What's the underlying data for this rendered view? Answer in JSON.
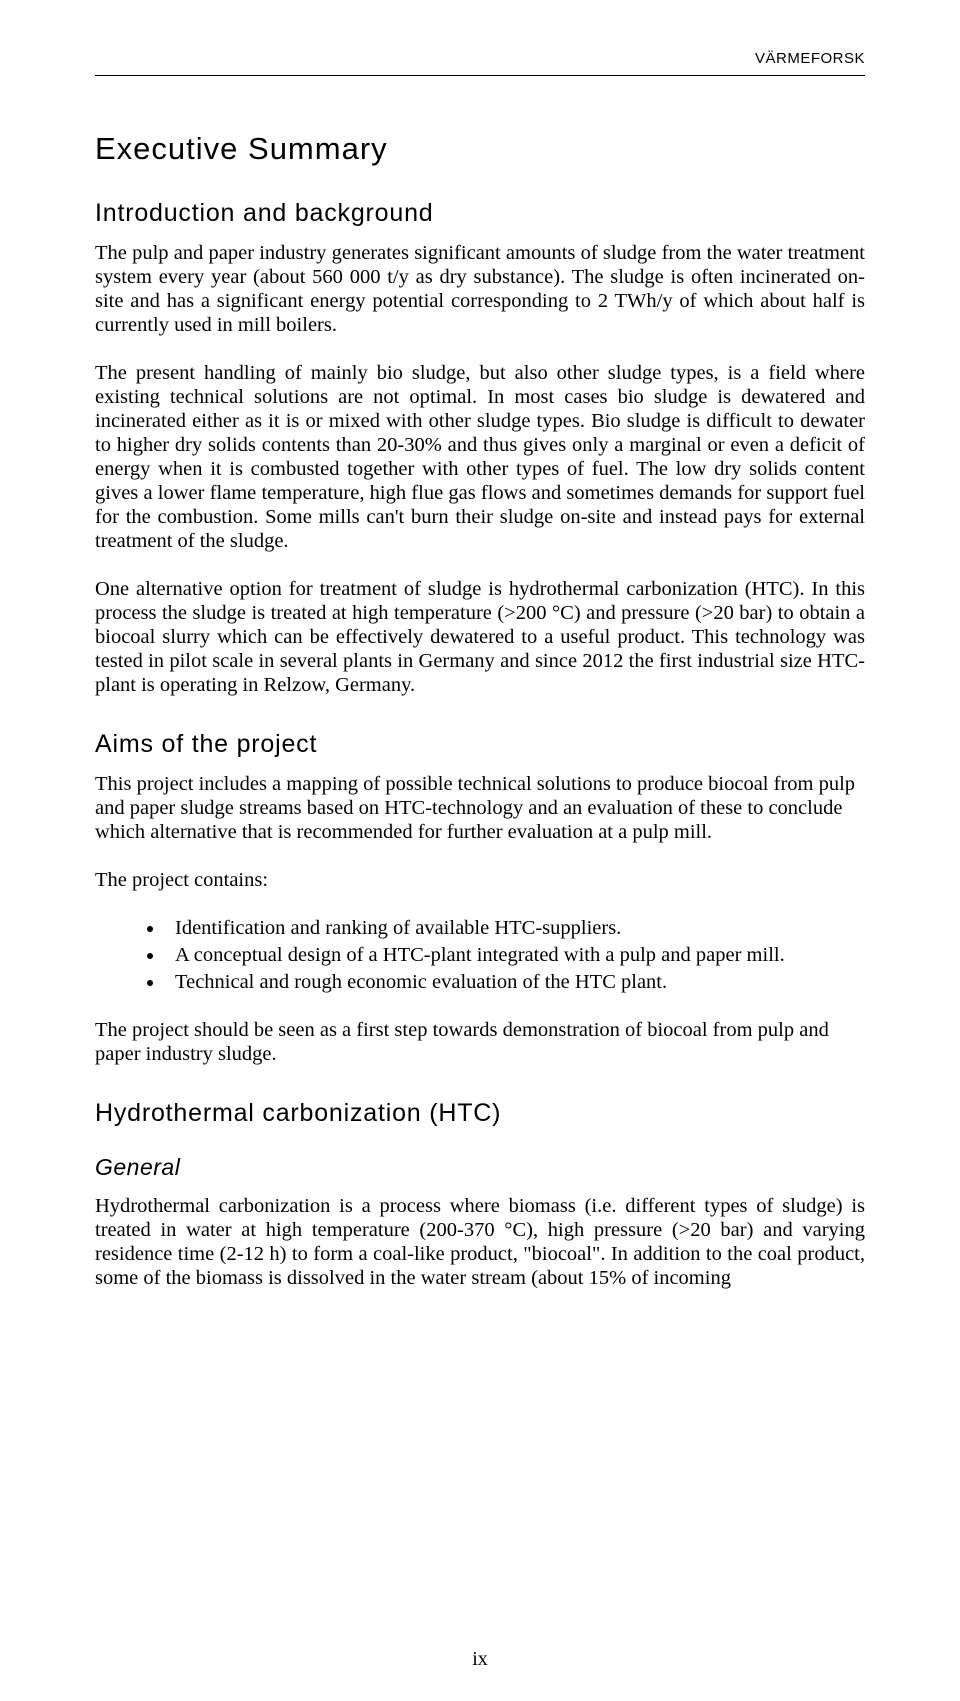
{
  "header": {
    "brand": "VÄRMEFORSK"
  },
  "title": "Executive Summary",
  "section_intro": {
    "heading": "Introduction and background",
    "p1": "The pulp and paper industry generates significant amounts of sludge from the water treatment system every year (about 560 000 t/y as dry substance). The sludge is often incinerated on-site and has a significant energy potential corresponding to 2 TWh/y of which about half is currently used in mill boilers.",
    "p2": "The present handling of mainly bio sludge, but also other sludge types, is a field where existing technical solutions are not optimal. In most cases bio sludge is dewatered and incinerated either as it is or mixed with other sludge types. Bio sludge is difficult to dewater to higher dry solids contents than 20-30% and thus gives only a marginal or even a deficit of energy when it is combusted together with other types of fuel. The low dry solids content gives a lower flame temperature, high flue gas flows and sometimes demands for support fuel for the combustion. Some mills can't burn their sludge on-site and instead pays for external treatment of the sludge.",
    "p3": "One alternative option for treatment of sludge is hydrothermal carbonization (HTC). In this process the sludge is treated at high temperature (>200 °C) and pressure (>20 bar) to obtain a biocoal slurry which can be effectively dewatered to a useful product. This technology was tested in pilot scale in several plants in Germany and since 2012 the first industrial size HTC-plant is operating in Relzow, Germany."
  },
  "section_aims": {
    "heading": "Aims of the project",
    "p1": "This project includes a mapping of possible technical solutions to produce biocoal from pulp and paper sludge streams based on HTC-technology and an evaluation of these to conclude which alternative that is recommended for further evaluation at a pulp mill.",
    "p2": "The project contains:",
    "bullets": [
      "Identification and ranking of available HTC-suppliers.",
      "A conceptual design of a HTC-plant integrated with a pulp and paper mill.",
      "Technical and rough economic evaluation of the HTC plant."
    ],
    "p3": "The project should be seen as a first step towards demonstration of biocoal from pulp and paper industry sludge."
  },
  "section_htc": {
    "heading": "Hydrothermal carbonization (HTC)",
    "sub_general": "General",
    "p1": "Hydrothermal carbonization is a process where biomass (i.e. different types of sludge) is treated in water at high temperature (200-370 °C), high pressure (>20 bar) and varying residence time (2-12 h) to form a coal-like product, \"biocoal\". In addition to the coal product, some of the biomass is dissolved in the water stream (about 15% of incoming"
  },
  "page_number": "ix"
}
